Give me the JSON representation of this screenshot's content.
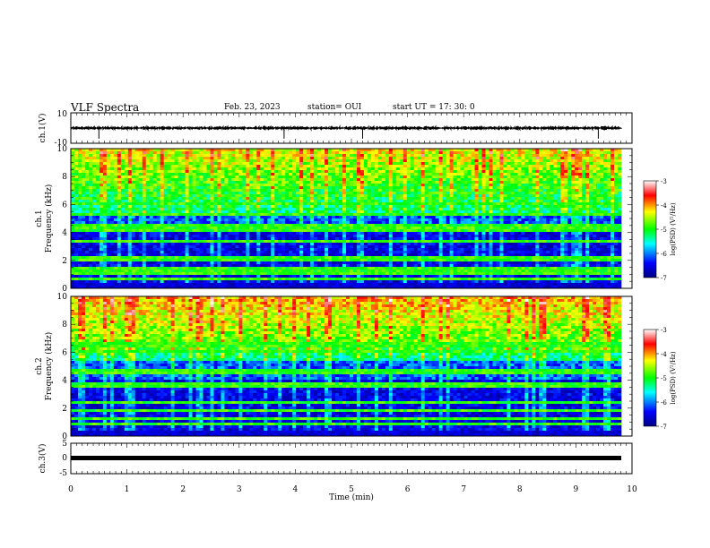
{
  "header": {
    "title": "VLF Spectra",
    "date": "Feb. 23, 2023",
    "station": "station= OUI",
    "start": "start  UT  =   17: 30: 0"
  },
  "chart_data": [
    {
      "type": "line",
      "name": "ch1-waveform",
      "ylabel": "ch.1(V)",
      "ylim": [
        -10,
        10
      ],
      "yticks": [
        "10",
        "-10"
      ],
      "xlim": [
        0,
        10
      ],
      "baseline": 0,
      "spikes_min": [
        0.5,
        3.8,
        5.2,
        9.4
      ]
    },
    {
      "type": "heatmap",
      "name": "ch1-spectrogram",
      "ylabel": "ch.1\nFrequency (kHz)",
      "ylim": [
        0,
        10
      ],
      "yticks": [
        "0",
        "2",
        "4",
        "6",
        "8",
        "10"
      ],
      "xlim": [
        0,
        9.85
      ],
      "colorbar": {
        "label": "log(PSD) (V²/Hz)",
        "range": [
          -7,
          -3
        ],
        "ticks": [
          "-3",
          "-4",
          "-5",
          "-6",
          "-7"
        ]
      }
    },
    {
      "type": "heatmap",
      "name": "ch2-spectrogram",
      "ylabel": "ch.2\nFrequency (kHz)",
      "ylim": [
        0,
        10
      ],
      "yticks": [
        "0",
        "2",
        "4",
        "6",
        "8",
        "10"
      ],
      "xlim": [
        0,
        9.85
      ],
      "colorbar": {
        "label": "log(PSD) (V²/Hz)",
        "range": [
          -7,
          -3
        ],
        "ticks": [
          "-3",
          "-4",
          "-5",
          "-6",
          "-7"
        ]
      }
    },
    {
      "type": "line",
      "name": "ch3-waveform",
      "ylabel": "ch.3(V)",
      "ylim": [
        -5,
        5
      ],
      "yticks": [
        "5",
        "0",
        "-5"
      ],
      "xlim": [
        0,
        10
      ],
      "baseline": 0,
      "xlabel": "Time (min)",
      "xticks": [
        "0",
        "1",
        "2",
        "3",
        "4",
        "5",
        "6",
        "7",
        "8",
        "9",
        "10"
      ]
    }
  ]
}
